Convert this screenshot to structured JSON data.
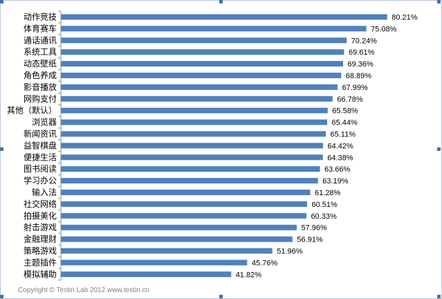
{
  "chart_data": {
    "type": "bar",
    "orientation": "horizontal",
    "title": "",
    "xlabel": "",
    "ylabel": "",
    "xlim": [
      0,
      90
    ],
    "grid": false,
    "bar_color": "#4f81bd",
    "categories": [
      "动作竞技",
      "体育赛车",
      "通话通讯",
      "系统工具",
      "动态壁纸",
      "角色养成",
      "影音播放",
      "网购支付",
      "其他（默认）",
      "浏览器",
      "新闻资讯",
      "益智棋盘",
      "便捷生活",
      "图书阅读",
      "学习办公",
      "输入法",
      "社交网络",
      "拍摄美化",
      "射击游戏",
      "金融理财",
      "策略游戏",
      "主题插件",
      "模拟辅助"
    ],
    "values": [
      80.21,
      75.08,
      70.24,
      69.61,
      69.36,
      68.89,
      67.99,
      66.78,
      65.58,
      65.44,
      65.11,
      64.42,
      64.38,
      63.66,
      63.19,
      61.28,
      60.51,
      60.33,
      57.96,
      56.91,
      51.96,
      45.76,
      41.82
    ],
    "data_labels": [
      "80.21%",
      "75.08%",
      "70.24%",
      "69.61%",
      "69.36%",
      "68.89%",
      "67.99%",
      "66.78%",
      "65.58%",
      "65.44%",
      "65.11%",
      "64.42%",
      "64.38%",
      "63.66%",
      "63.19%",
      "61.28%",
      "60.51%",
      "60.33%",
      "57.96%",
      "56.91%",
      "51.96%",
      "45.76%",
      "41.82%"
    ]
  },
  "footer": {
    "copyright": "Copyright © Testin Lab 2012   www.testin.cn"
  }
}
